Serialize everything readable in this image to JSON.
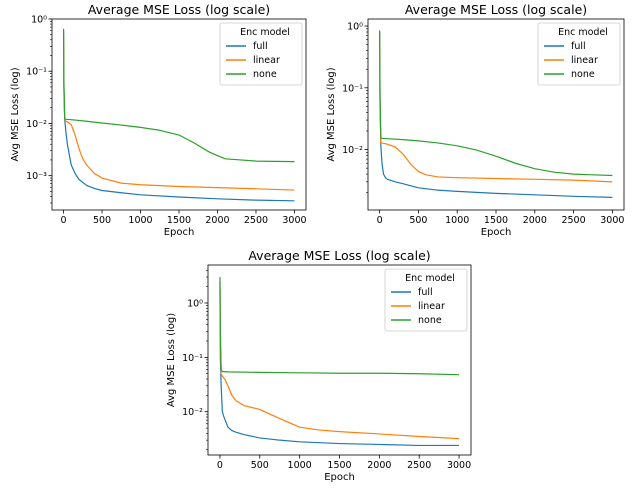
{
  "chart_data": [
    {
      "type": "line",
      "title": "Average MSE Loss (log scale)",
      "xlabel": "Epoch",
      "ylabel": "Avg MSE Loss (log)",
      "yscale": "log",
      "xlim": [
        -150,
        3150
      ],
      "ylim": [
        0.00022,
        1.0
      ],
      "xticks": [
        0,
        500,
        1000,
        1500,
        2000,
        2500,
        3000
      ],
      "yticks": [
        0.001,
        0.01,
        0.1,
        1
      ],
      "ytick_labels": [
        "10⁻³",
        "10⁻²",
        "10⁻¹",
        "10⁰"
      ],
      "legend": {
        "title": "Enc model",
        "placement": "top-right"
      },
      "series": [
        {
          "name": "full",
          "color": "#1f77b4",
          "x": [
            0,
            5,
            15,
            30,
            50,
            75,
            100,
            150,
            200,
            300,
            400,
            500,
            750,
            1000,
            1500,
            2000,
            2500,
            3000
          ],
          "y": [
            0.6,
            0.05,
            0.012,
            0.007,
            0.004,
            0.0025,
            0.0016,
            0.0011,
            0.00085,
            0.00065,
            0.00057,
            0.00052,
            0.00047,
            0.00043,
            0.00039,
            0.00036,
            0.00034,
            0.00033
          ]
        },
        {
          "name": "linear",
          "color": "#ff7f0e",
          "x": [
            0,
            5,
            15,
            30,
            60,
            100,
            150,
            200,
            250,
            300,
            400,
            500,
            750,
            1000,
            1500,
            2000,
            2500,
            3000
          ],
          "y": [
            0.5,
            0.04,
            0.012,
            0.011,
            0.0105,
            0.0095,
            0.006,
            0.0033,
            0.0021,
            0.0016,
            0.0011,
            0.0009,
            0.00072,
            0.00067,
            0.00062,
            0.00059,
            0.00056,
            0.00053
          ]
        },
        {
          "name": "none",
          "color": "#2ca02c",
          "x": [
            0,
            5,
            15,
            30,
            100,
            300,
            500,
            750,
            1000,
            1250,
            1500,
            1700,
            1900,
            2100,
            2300,
            2500,
            2750,
            3000
          ],
          "y": [
            0.65,
            0.06,
            0.0125,
            0.012,
            0.0118,
            0.011,
            0.0102,
            0.0093,
            0.0084,
            0.0074,
            0.006,
            0.0042,
            0.0028,
            0.0021,
            0.002,
            0.0019,
            0.00188,
            0.00186
          ]
        }
      ]
    },
    {
      "type": "line",
      "title": "Average MSE Loss (log scale)",
      "xlabel": "Epoch",
      "ylabel": "Avg MSE Loss (log)",
      "yscale": "log",
      "xlim": [
        -150,
        3150
      ],
      "ylim": [
        0.00105,
        1.3
      ],
      "xticks": [
        0,
        500,
        1000,
        1500,
        2000,
        2500,
        3000
      ],
      "yticks": [
        0.01,
        0.1,
        1
      ],
      "ytick_labels": [
        "10⁻²",
        "10⁻¹",
        "10⁰"
      ],
      "legend": {
        "title": "Enc model",
        "placement": "top-right"
      },
      "series": [
        {
          "name": "full",
          "color": "#1f77b4",
          "x": [
            0,
            5,
            15,
            30,
            50,
            75,
            100,
            200,
            300,
            500,
            750,
            1000,
            1500,
            2000,
            2500,
            3000
          ],
          "y": [
            0.8,
            0.08,
            0.012,
            0.006,
            0.004,
            0.0035,
            0.0033,
            0.003,
            0.0028,
            0.0024,
            0.0022,
            0.0021,
            0.00195,
            0.00185,
            0.00175,
            0.00168
          ]
        },
        {
          "name": "linear",
          "color": "#ff7f0e",
          "x": [
            0,
            5,
            15,
            30,
            100,
            200,
            300,
            400,
            500,
            600,
            750,
            1000,
            1500,
            2000,
            2500,
            3000
          ],
          "y": [
            0.7,
            0.05,
            0.013,
            0.0128,
            0.0122,
            0.011,
            0.0085,
            0.0058,
            0.0044,
            0.0039,
            0.0036,
            0.0035,
            0.0034,
            0.0033,
            0.0032,
            0.003
          ]
        },
        {
          "name": "none",
          "color": "#2ca02c",
          "x": [
            0,
            5,
            15,
            30,
            100,
            300,
            500,
            750,
            1000,
            1250,
            1500,
            1750,
            2000,
            2250,
            2500,
            2750,
            3000
          ],
          "y": [
            0.85,
            0.07,
            0.0155,
            0.0152,
            0.015,
            0.0145,
            0.0138,
            0.0128,
            0.0115,
            0.0098,
            0.0078,
            0.006,
            0.0049,
            0.0043,
            0.004,
            0.0039,
            0.0038
          ]
        }
      ]
    },
    {
      "type": "line",
      "title": "Average MSE Loss (log scale)",
      "xlabel": "Epoch",
      "ylabel": "Avg MSE Loss (log)",
      "yscale": "log",
      "xlim": [
        -150,
        3150
      ],
      "ylim": [
        0.0016,
        5.0
      ],
      "xticks": [
        0,
        500,
        1000,
        1500,
        2000,
        2500,
        3000
      ],
      "yticks": [
        0.01,
        0.1,
        1
      ],
      "ytick_labels": [
        "10⁻²",
        "10⁻¹",
        "10⁰"
      ],
      "legend": {
        "title": "Enc model",
        "placement": "top-right"
      },
      "series": [
        {
          "name": "full",
          "color": "#1f77b4",
          "x": [
            0,
            5,
            15,
            30,
            50,
            75,
            100,
            150,
            200,
            300,
            500,
            750,
            1000,
            1500,
            2000,
            2500,
            3000
          ],
          "y": [
            2.5,
            0.1,
            0.03,
            0.01,
            0.008,
            0.0065,
            0.0052,
            0.0045,
            0.0042,
            0.0038,
            0.0033,
            0.003,
            0.0028,
            0.0026,
            0.0025,
            0.0024,
            0.0024
          ]
        },
        {
          "name": "linear",
          "color": "#ff7f0e",
          "x": [
            0,
            5,
            15,
            30,
            60,
            100,
            150,
            200,
            300,
            500,
            750,
            1000,
            1250,
            1500,
            2000,
            2500,
            3000
          ],
          "y": [
            1.8,
            0.2,
            0.05,
            0.045,
            0.04,
            0.03,
            0.02,
            0.016,
            0.013,
            0.011,
            0.0075,
            0.0052,
            0.0046,
            0.0043,
            0.0039,
            0.0035,
            0.0032
          ]
        },
        {
          "name": "none",
          "color": "#2ca02c",
          "x": [
            0,
            5,
            15,
            30,
            100,
            500,
            1000,
            1500,
            2000,
            2500,
            3000
          ],
          "y": [
            3.0,
            0.3,
            0.06,
            0.055,
            0.054,
            0.053,
            0.052,
            0.051,
            0.051,
            0.05,
            0.048
          ]
        }
      ]
    }
  ]
}
